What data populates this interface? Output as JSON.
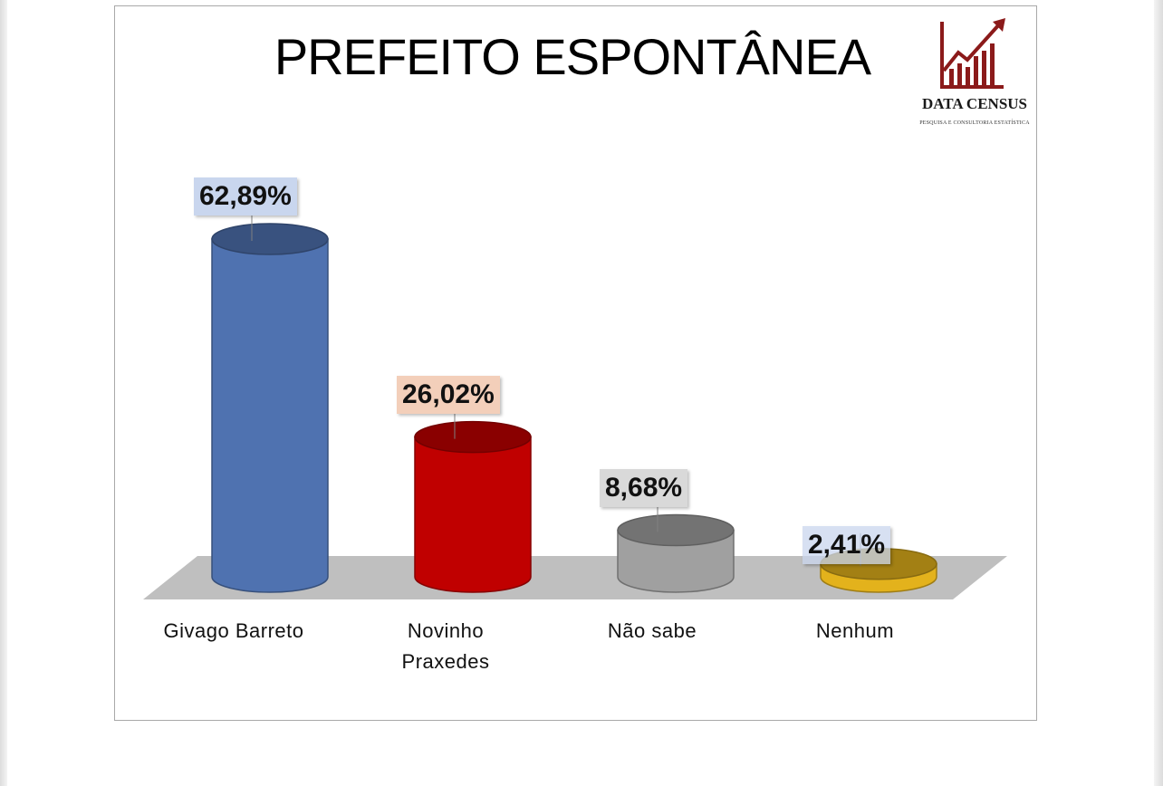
{
  "chart_data": {
    "type": "bar",
    "title": "PREFEITO ESPONTÂNEA",
    "categories": [
      "Givago Barreto",
      "Novinho\nPraxedes",
      "Não sabe",
      "Nenhum"
    ],
    "values": [
      62.89,
      26.02,
      8.68,
      2.41
    ],
    "value_labels": [
      "62,89%",
      "26,02%",
      "8,68%",
      "2,41%"
    ],
    "colors": [
      "#4f72b0",
      "#c00000",
      "#a0a0a0",
      "#e3b21c"
    ],
    "label_bg": [
      "#c9d6ee",
      "#f3cfba",
      "#d9d9d9",
      "#c9d6ee"
    ],
    "ylim": [
      0,
      62.89
    ],
    "xlabel": "",
    "ylabel": "",
    "legend": "none",
    "grid": false
  },
  "logo": {
    "name": "DATA CENSUS",
    "tagline": "PESQUISA E CONSULTORIA ESTATÍSTICA",
    "color": "#8b1a1a"
  }
}
